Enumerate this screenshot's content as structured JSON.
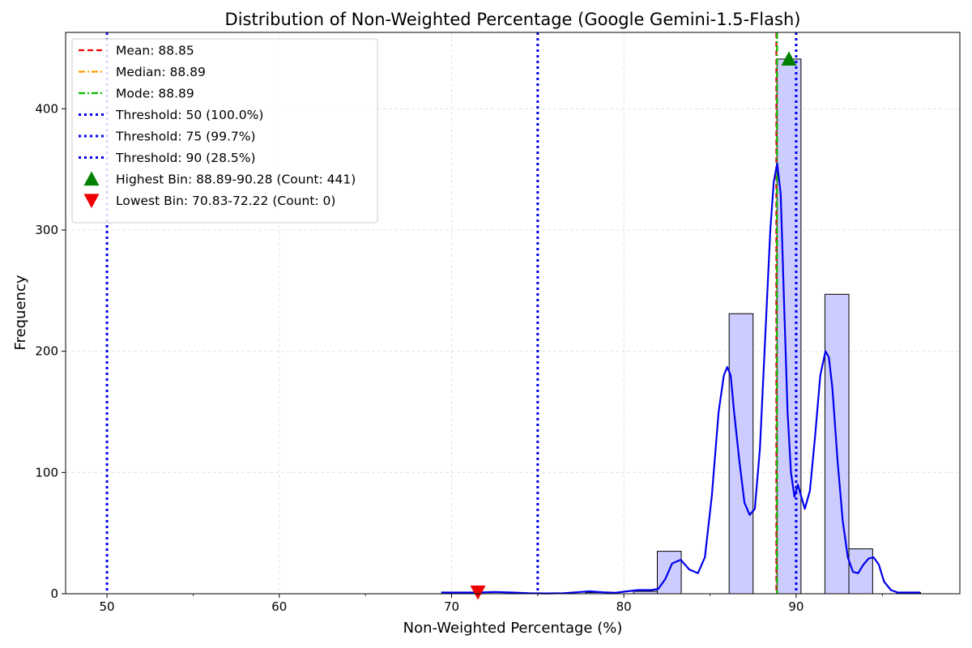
{
  "chart_data": {
    "type": "bar",
    "title": "Distribution of Non-Weighted Percentage (Google Gemini-1.5-Flash)",
    "xlabel": "Non-Weighted Percentage (%)",
    "ylabel": "Frequency",
    "xlim": [
      47.6,
      99.5
    ],
    "ylim": [
      0,
      463
    ],
    "xticks": [
      50,
      60,
      70,
      80,
      90
    ],
    "xticks_minor": [
      55,
      65,
      75,
      85,
      95
    ],
    "yticks": [
      0,
      100,
      200,
      300,
      400
    ],
    "grid": true,
    "legend_position": "top-left",
    "hist_color": "#ccccff",
    "bins": [
      {
        "x0": 69.44,
        "x1": 70.83,
        "count": 1
      },
      {
        "x0": 70.83,
        "x1": 72.22,
        "count": 0
      },
      {
        "x0": 72.22,
        "x1": 73.61,
        "count": 1
      },
      {
        "x0": 73.61,
        "x1": 75.0,
        "count": 0
      },
      {
        "x0": 75.0,
        "x1": 76.39,
        "count": 0
      },
      {
        "x0": 76.39,
        "x1": 77.78,
        "count": 0
      },
      {
        "x0": 77.78,
        "x1": 79.17,
        "count": 1
      },
      {
        "x0": 79.17,
        "x1": 80.56,
        "count": 0
      },
      {
        "x0": 80.56,
        "x1": 81.94,
        "count": 2
      },
      {
        "x0": 81.94,
        "x1": 83.33,
        "count": 35
      },
      {
        "x0": 83.33,
        "x1": 84.72,
        "count": 0
      },
      {
        "x0": 84.72,
        "x1": 86.11,
        "count": 0
      },
      {
        "x0": 86.11,
        "x1": 87.5,
        "count": 231
      },
      {
        "x0": 87.5,
        "x1": 88.89,
        "count": 0
      },
      {
        "x0": 88.89,
        "x1": 90.28,
        "count": 441
      },
      {
        "x0": 90.28,
        "x1": 91.67,
        "count": 0
      },
      {
        "x0": 91.67,
        "x1": 93.06,
        "count": 247
      },
      {
        "x0": 93.06,
        "x1": 94.44,
        "count": 37
      },
      {
        "x0": 94.44,
        "x1": 95.83,
        "count": 0
      },
      {
        "x0": 95.83,
        "x1": 97.22,
        "count": 1
      }
    ],
    "kde": {
      "name": "KDE",
      "color": "#0000ee",
      "x": [
        69.4,
        70.5,
        71.5,
        72.5,
        73.5,
        74.5,
        75.5,
        76.5,
        77.5,
        78.0,
        78.8,
        79.5,
        80.2,
        80.8,
        81.6,
        82.0,
        82.4,
        82.8,
        83.3,
        83.8,
        84.3,
        84.7,
        85.1,
        85.5,
        85.8,
        86.0,
        86.2,
        86.4,
        86.7,
        87.0,
        87.3,
        87.6,
        87.9,
        88.2,
        88.5,
        88.7,
        88.9,
        89.1,
        89.3,
        89.5,
        89.7,
        89.9,
        90.1,
        90.3,
        90.5,
        90.8,
        91.1,
        91.4,
        91.7,
        91.9,
        92.1,
        92.4,
        92.7,
        93.0,
        93.3,
        93.6,
        93.9,
        94.2,
        94.5,
        94.8,
        95.1,
        95.5,
        95.9,
        96.3,
        97.2
      ],
      "y": [
        1,
        1,
        1,
        1.5,
        1,
        0.5,
        0.3,
        0.5,
        1.5,
        2,
        1.2,
        0.8,
        2,
        3,
        3,
        4,
        12,
        25,
        28,
        20,
        17,
        30,
        80,
        150,
        180,
        187,
        180,
        150,
        110,
        75,
        65,
        70,
        120,
        210,
        300,
        340,
        355,
        330,
        240,
        150,
        100,
        80,
        90,
        80,
        70,
        85,
        130,
        180,
        200,
        195,
        170,
        110,
        60,
        30,
        18,
        17,
        24,
        29,
        30,
        24,
        10,
        3,
        1,
        1,
        1
      ]
    },
    "lines": [
      {
        "label": "Mean: 88.85",
        "x": 88.85,
        "color": "#ee0000",
        "style": "dashed"
      },
      {
        "label": "Median: 88.89",
        "x": 88.89,
        "color": "#ff9900",
        "style": "dashdot"
      },
      {
        "label": "Mode: 88.89",
        "x": 88.89,
        "color": "#00bb00",
        "style": "dashdot"
      },
      {
        "label": "Threshold: 50 (100.0%)",
        "x": 50,
        "color": "#0000ee",
        "style": "dotted"
      },
      {
        "label": "Threshold: 75 (99.7%)",
        "x": 75,
        "color": "#0000ee",
        "style": "dotted"
      },
      {
        "label": "Threshold: 90 (28.5%)",
        "x": 90,
        "color": "#0000ee",
        "style": "dotted"
      }
    ],
    "markers": [
      {
        "label": "Highest Bin: 88.89-90.28 (Count: 441)",
        "x": 89.58,
        "y": 441,
        "shape": "triangle-up",
        "color": "#008000"
      },
      {
        "label": "Lowest Bin: 70.83-72.22 (Count: 0)",
        "x": 71.53,
        "y": 0,
        "shape": "triangle-down",
        "color": "#ee0000"
      }
    ]
  }
}
